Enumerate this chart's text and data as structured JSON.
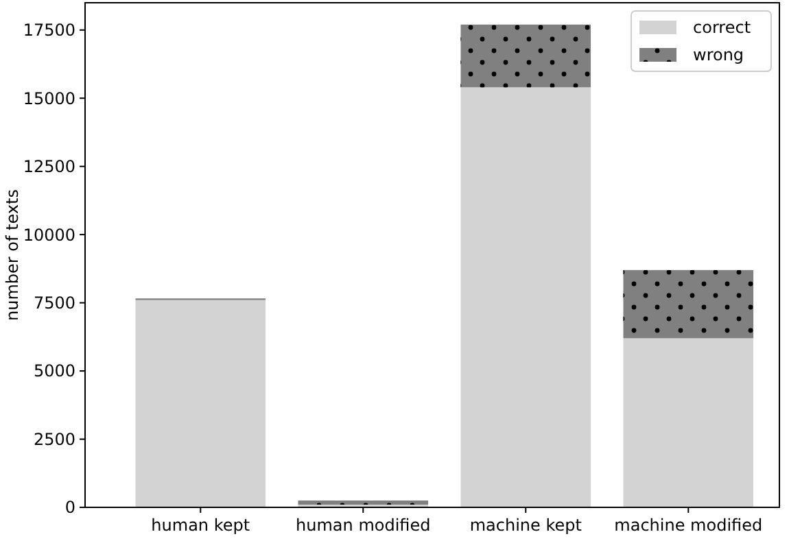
{
  "chart_data": {
    "type": "bar",
    "stacked": true,
    "ylabel": "number of texts",
    "categories": [
      "human kept",
      "human modified",
      "machine kept",
      "machine modified"
    ],
    "series": [
      {
        "name": "correct",
        "color": "#d3d3d3",
        "values": [
          7600,
          100,
          15400,
          6200
        ]
      },
      {
        "name": "wrong",
        "color": "#808080",
        "values": [
          60,
          150,
          2300,
          2500
        ]
      }
    ],
    "ylim": [
      0,
      18500
    ],
    "yticks": [
      0,
      2500,
      5000,
      7500,
      10000,
      12500,
      15000,
      17500
    ],
    "legend": "top right"
  }
}
